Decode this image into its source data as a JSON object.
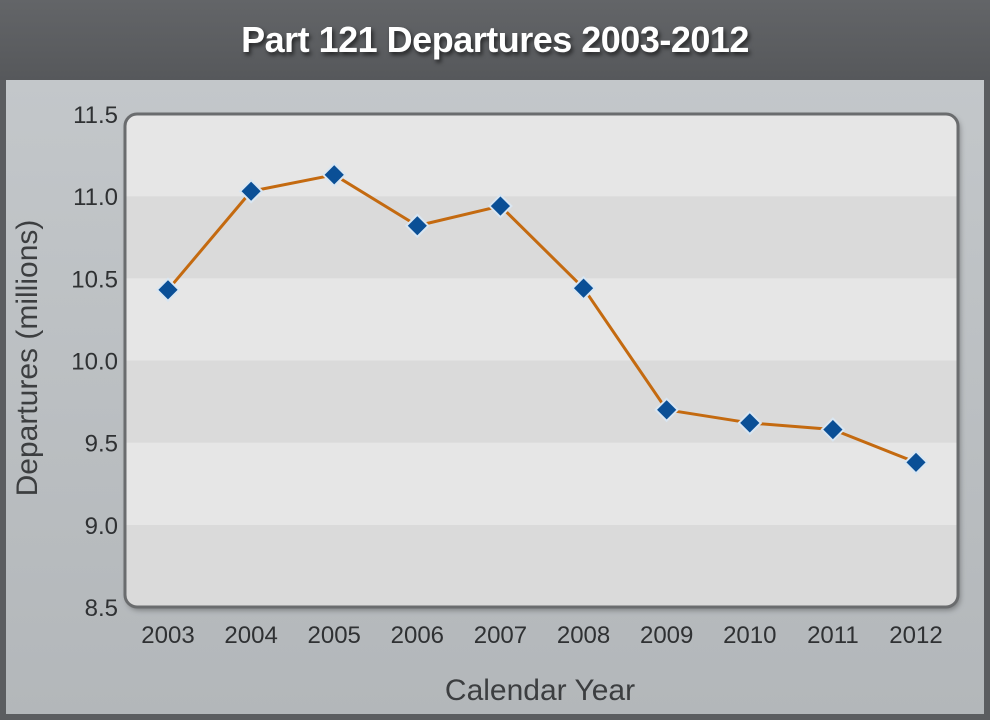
{
  "chart_data": {
    "type": "line",
    "title": "Part 121 Departures 2003-2012",
    "xlabel": "Calendar Year",
    "ylabel": "Departures (millions)",
    "categories": [
      "2003",
      "2004",
      "2005",
      "2006",
      "2007",
      "2008",
      "2009",
      "2010",
      "2011",
      "2012"
    ],
    "series": [
      {
        "values": [
          10.43,
          11.03,
          11.13,
          10.82,
          10.94,
          10.44,
          9.7,
          9.62,
          9.58,
          9.38
        ]
      }
    ],
    "ylim": [
      8.5,
      11.5
    ],
    "yticks": [
      "8.5",
      "9.0",
      "9.5",
      "10.0",
      "10.5",
      "11.0",
      "11.5"
    ],
    "grid": "alternating horizontal bands",
    "legend": "none",
    "colors": {
      "line": "#c46a10",
      "marker": "#0a4f96",
      "band_light": "#e6e6e6",
      "band_dark": "#dadada"
    }
  }
}
